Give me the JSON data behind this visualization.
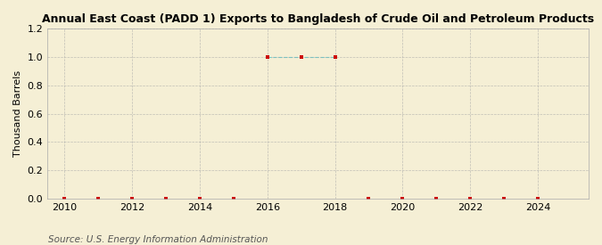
{
  "title": "Annual East Coast (PADD 1) Exports to Bangladesh of Crude Oil and Petroleum Products",
  "ylabel": "Thousand Barrels",
  "source": "Source: U.S. Energy Information Administration",
  "background_color": "#f5efd5",
  "marker_color": "#cc0000",
  "line_color": "#66cccc",
  "grid_color": "#aaaaaa",
  "xlim": [
    2009.5,
    2025.5
  ],
  "ylim": [
    0.0,
    1.2
  ],
  "yticks": [
    0.0,
    0.2,
    0.4,
    0.6,
    0.8,
    1.0,
    1.2
  ],
  "xticks": [
    2010,
    2012,
    2014,
    2016,
    2018,
    2020,
    2022,
    2024
  ],
  "years": [
    2010,
    2011,
    2012,
    2013,
    2014,
    2015,
    2016,
    2017,
    2018,
    2019,
    2020,
    2021,
    2022,
    2023,
    2024
  ],
  "values": [
    0.0,
    0.0,
    0.0,
    0.0,
    0.0,
    0.0,
    1.0,
    1.0,
    1.0,
    0.0,
    0.0,
    0.0,
    0.0,
    0.0,
    0.0
  ],
  "nonzero_years": [
    2016,
    2017,
    2018
  ],
  "nonzero_values": [
    1.0,
    1.0,
    1.0
  ],
  "title_fontsize": 9,
  "tick_fontsize": 8,
  "ylabel_fontsize": 8,
  "source_fontsize": 7.5
}
